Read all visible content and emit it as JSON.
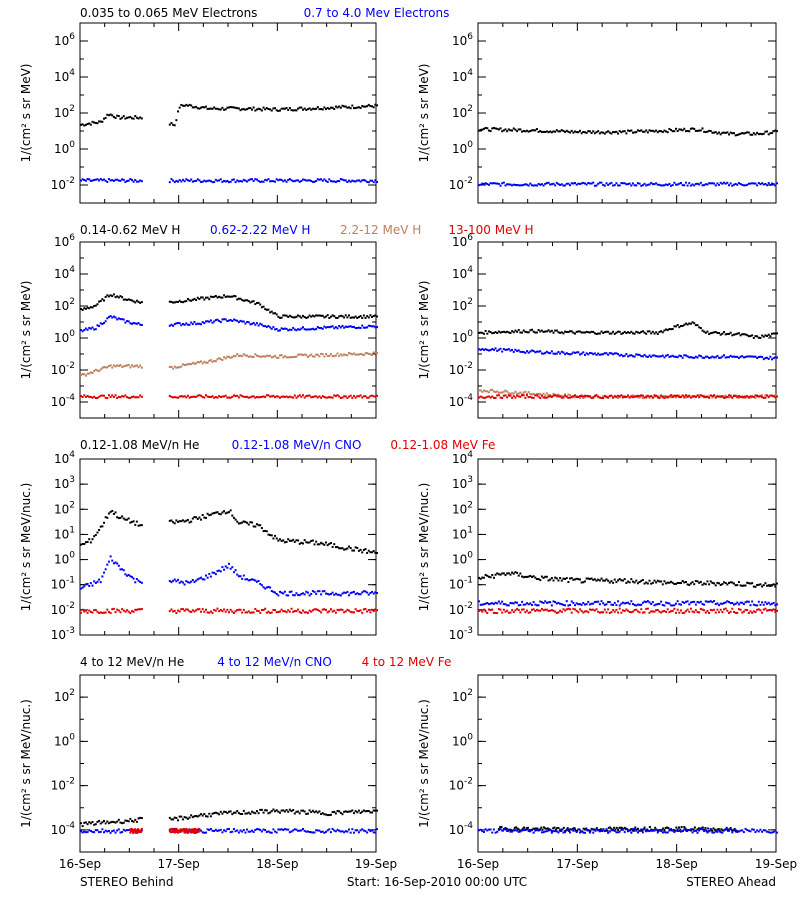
{
  "footer": {
    "left": "STEREO Behind",
    "center": "Start: 16-Sep-2010 00:00 UTC",
    "right": "STEREO Ahead"
  },
  "rows": [
    {
      "legend": [
        {
          "text": "0.035 to 0.065 MeV Electrons",
          "color": "#000000"
        },
        {
          "text": "0.7 to 4.0 Mev Electrons",
          "color": "#0000ff"
        }
      ],
      "ylabel": "1/(cm² s sr MeV)",
      "yticks": [
        {
          "base": "10",
          "exp": "-2",
          "value": -2
        },
        {
          "base": "10",
          "exp": "0",
          "value": 0
        },
        {
          "base": "10",
          "exp": "2",
          "value": 2
        },
        {
          "base": "10",
          "exp": "4",
          "value": 4
        },
        {
          "base": "10",
          "exp": "6",
          "value": 6
        }
      ]
    },
    {
      "legend": [
        {
          "text": "0.14-0.62 MeV H",
          "color": "#000000"
        },
        {
          "text": "0.62-2.22 MeV H",
          "color": "#0000ff"
        },
        {
          "text": "2.2-12 MeV H",
          "color": "#c08060"
        },
        {
          "text": "13-100 MeV H",
          "color": "#e00000"
        }
      ],
      "ylabel": "1/(cm² s sr MeV)",
      "yticks": [
        {
          "base": "10",
          "exp": "-4",
          "value": -4
        },
        {
          "base": "10",
          "exp": "-2",
          "value": -2
        },
        {
          "base": "10",
          "exp": "0",
          "value": 0
        },
        {
          "base": "10",
          "exp": "2",
          "value": 2
        },
        {
          "base": "10",
          "exp": "4",
          "value": 4
        },
        {
          "base": "10",
          "exp": "6",
          "value": 6
        }
      ]
    },
    {
      "legend": [
        {
          "text": "0.12-1.08 MeV/n He",
          "color": "#000000"
        },
        {
          "text": "0.12-1.08 MeV/n CNO",
          "color": "#0000ff"
        },
        {
          "text": "0.12-1.08 MeV Fe",
          "color": "#e00000"
        }
      ],
      "ylabel": "1/(cm² s sr MeV/nuc.)",
      "yticks": [
        {
          "base": "10",
          "exp": "-3",
          "value": -3
        },
        {
          "base": "10",
          "exp": "-2",
          "value": -2
        },
        {
          "base": "10",
          "exp": "-1",
          "value": -1
        },
        {
          "base": "10",
          "exp": "0",
          "value": 0
        },
        {
          "base": "10",
          "exp": "1",
          "value": 1
        },
        {
          "base": "10",
          "exp": "2",
          "value": 2
        },
        {
          "base": "10",
          "exp": "3",
          "value": 3
        },
        {
          "base": "10",
          "exp": "4",
          "value": 4
        }
      ]
    },
    {
      "legend": [
        {
          "text": "4 to 12 MeV/n He",
          "color": "#000000"
        },
        {
          "text": "4 to 12 MeV/n CNO",
          "color": "#0000ff"
        },
        {
          "text": "4 to 12 MeV Fe",
          "color": "#e00000"
        }
      ],
      "ylabel": "1/(cm² s sr MeV/nuc.)",
      "yticks": [
        {
          "base": "10",
          "exp": "-4",
          "value": -4
        },
        {
          "base": "10",
          "exp": "-2",
          "value": -2
        },
        {
          "base": "10",
          "exp": "0",
          "value": 0
        },
        {
          "base": "10",
          "exp": "2",
          "value": 2
        }
      ]
    }
  ],
  "xticks": [
    "16-Sep",
    "17-Sep",
    "18-Sep",
    "19-Sep"
  ],
  "chart_data": [
    {
      "type": "scatter",
      "panel": "electrons-behind",
      "yscale": "log",
      "ylim_exp": [
        -3,
        7
      ],
      "x_days_range": [
        0,
        3
      ],
      "series": [
        {
          "color": "#000000",
          "points": [
            [
              0.0,
              1.4
            ],
            [
              0.12,
              1.5
            ],
            [
              0.2,
              1.55
            ],
            [
              0.28,
              2.0
            ],
            [
              0.38,
              1.8
            ],
            [
              0.6,
              1.8
            ],
            [
              0.88,
              1.5
            ],
            [
              0.95,
              1.4
            ],
            [
              1.0,
              2.4
            ],
            [
              1.05,
              2.5
            ],
            [
              1.3,
              2.3
            ],
            [
              1.6,
              2.3
            ],
            [
              2.0,
              2.25
            ],
            [
              2.5,
              2.35
            ],
            [
              3.0,
              2.45
            ]
          ]
        },
        {
          "color": "#0000ff",
          "points": [
            [
              0.0,
              -1.7
            ],
            [
              0.6,
              -1.7
            ],
            [
              0.95,
              -1.7
            ],
            [
              1.5,
              -1.7
            ],
            [
              2.0,
              -1.7
            ],
            [
              3.0,
              -1.7
            ]
          ]
        }
      ],
      "gaps": [
        [
          0.62,
          0.9
        ]
      ]
    },
    {
      "type": "scatter",
      "panel": "electrons-ahead",
      "yscale": "log",
      "ylim_exp": [
        -3,
        7
      ],
      "x_days_range": [
        0,
        3
      ],
      "series": [
        {
          "color": "#000000",
          "points": [
            [
              0.0,
              1.15
            ],
            [
              0.5,
              1.1
            ],
            [
              1.0,
              1.0
            ],
            [
              1.5,
              1.0
            ],
            [
              2.0,
              1.1
            ],
            [
              2.2,
              1.15
            ],
            [
              2.5,
              0.9
            ],
            [
              2.8,
              0.9
            ],
            [
              3.0,
              1.0
            ]
          ]
        },
        {
          "color": "#0000ff",
          "points": [
            [
              0.0,
              -1.9
            ],
            [
              1.0,
              -1.9
            ],
            [
              2.0,
              -1.9
            ],
            [
              3.0,
              -1.9
            ]
          ]
        }
      ]
    },
    {
      "type": "scatter",
      "panel": "protons-behind",
      "yscale": "log",
      "ylim_exp": [
        -5,
        6
      ],
      "x_days_range": [
        0,
        3
      ],
      "series": [
        {
          "color": "#000000",
          "points": [
            [
              0.0,
              1.8
            ],
            [
              0.15,
              2.1
            ],
            [
              0.3,
              2.8
            ],
            [
              0.45,
              2.5
            ],
            [
              0.6,
              2.3
            ],
            [
              0.9,
              2.3
            ],
            [
              1.2,
              2.5
            ],
            [
              1.5,
              2.7
            ],
            [
              1.8,
              2.2
            ],
            [
              2.0,
              1.4
            ],
            [
              2.5,
              1.4
            ],
            [
              3.0,
              1.4
            ]
          ]
        },
        {
          "color": "#0000ff",
          "points": [
            [
              0.0,
              0.5
            ],
            [
              0.15,
              0.7
            ],
            [
              0.3,
              1.4
            ],
            [
              0.45,
              1.1
            ],
            [
              0.6,
              0.9
            ],
            [
              0.9,
              0.9
            ],
            [
              1.2,
              1.0
            ],
            [
              1.5,
              1.2
            ],
            [
              1.8,
              0.9
            ],
            [
              2.0,
              0.6
            ],
            [
              2.5,
              0.7
            ],
            [
              3.0,
              0.8
            ]
          ]
        },
        {
          "color": "#c08060",
          "points": [
            [
              0.0,
              -2.3
            ],
            [
              0.3,
              -1.7
            ],
            [
              0.6,
              -1.7
            ],
            [
              0.9,
              -1.8
            ],
            [
              1.3,
              -1.4
            ],
            [
              1.6,
              -1.0
            ],
            [
              2.0,
              -1.1
            ],
            [
              2.5,
              -1.0
            ],
            [
              3.0,
              -0.9
            ]
          ]
        },
        {
          "color": "#e00000",
          "points": [
            [
              0.0,
              -3.6
            ],
            [
              0.6,
              -3.6
            ],
            [
              0.9,
              -3.6
            ],
            [
              1.5,
              -3.6
            ],
            [
              2.0,
              -3.6
            ],
            [
              3.0,
              -3.6
            ]
          ]
        }
      ],
      "gaps": [
        [
          0.62,
          0.9
        ]
      ]
    },
    {
      "type": "scatter",
      "panel": "protons-ahead",
      "yscale": "log",
      "ylim_exp": [
        -5,
        6
      ],
      "x_days_range": [
        0,
        3
      ],
      "series": [
        {
          "color": "#000000",
          "points": [
            [
              0.0,
              0.4
            ],
            [
              0.5,
              0.5
            ],
            [
              1.0,
              0.4
            ],
            [
              1.5,
              0.4
            ],
            [
              1.8,
              0.4
            ],
            [
              2.0,
              0.8
            ],
            [
              2.15,
              1.0
            ],
            [
              2.3,
              0.4
            ],
            [
              2.6,
              0.3
            ],
            [
              2.8,
              0.1
            ],
            [
              3.0,
              0.3
            ]
          ]
        },
        {
          "color": "#0000ff",
          "points": [
            [
              0.0,
              -0.6
            ],
            [
              0.5,
              -0.8
            ],
            [
              1.0,
              -0.9
            ],
            [
              1.5,
              -1.0
            ],
            [
              2.0,
              -1.1
            ],
            [
              2.5,
              -1.1
            ],
            [
              3.0,
              -1.2
            ]
          ]
        },
        {
          "color": "#c08060",
          "points": [
            [
              0.0,
              -3.2
            ],
            [
              1.0,
              -3.6
            ],
            [
              2.0,
              -3.6
            ],
            [
              3.0,
              -3.6
            ]
          ]
        },
        {
          "color": "#e00000",
          "points": [
            [
              0.0,
              -3.6
            ],
            [
              1.0,
              -3.6
            ],
            [
              2.0,
              -3.6
            ],
            [
              3.0,
              -3.6
            ]
          ]
        }
      ]
    },
    {
      "type": "scatter",
      "panel": "ions-low-behind",
      "yscale": "log",
      "ylim_exp": [
        -3,
        4
      ],
      "x_days_range": [
        0,
        3
      ],
      "series": [
        {
          "color": "#000000",
          "points": [
            [
              0.0,
              0.6
            ],
            [
              0.1,
              0.8
            ],
            [
              0.2,
              1.3
            ],
            [
              0.3,
              2.0
            ],
            [
              0.4,
              1.7
            ],
            [
              0.55,
              1.5
            ],
            [
              0.6,
              1.4
            ],
            [
              0.9,
              1.5
            ],
            [
              1.1,
              1.6
            ],
            [
              1.3,
              1.8
            ],
            [
              1.5,
              2.0
            ],
            [
              1.6,
              1.5
            ],
            [
              1.8,
              1.4
            ],
            [
              2.0,
              0.8
            ],
            [
              2.4,
              0.7
            ],
            [
              2.7,
              0.5
            ],
            [
              3.0,
              0.3
            ]
          ]
        },
        {
          "color": "#0000ff",
          "points": [
            [
              0.0,
              -1.1
            ],
            [
              0.2,
              -0.8
            ],
            [
              0.3,
              0.1
            ],
            [
              0.4,
              -0.3
            ],
            [
              0.55,
              -0.8
            ],
            [
              0.9,
              -0.8
            ],
            [
              1.1,
              -0.9
            ],
            [
              1.3,
              -0.6
            ],
            [
              1.5,
              -0.2
            ],
            [
              1.6,
              -0.6
            ],
            [
              1.8,
              -0.9
            ],
            [
              2.0,
              -1.3
            ],
            [
              2.5,
              -1.3
            ],
            [
              3.0,
              -1.3
            ]
          ]
        },
        {
          "color": "#e00000",
          "points": [
            [
              0.0,
              -2.0
            ],
            [
              0.6,
              -2.0
            ],
            [
              0.9,
              -2.0
            ],
            [
              1.5,
              -2.0
            ],
            [
              2.0,
              -2.0
            ],
            [
              3.0,
              -2.0
            ]
          ]
        }
      ],
      "gaps": [
        [
          0.62,
          0.9
        ]
      ]
    },
    {
      "type": "scatter",
      "panel": "ions-low-ahead",
      "yscale": "log",
      "ylim_exp": [
        -3,
        4
      ],
      "x_days_range": [
        0,
        3
      ],
      "series": [
        {
          "color": "#000000",
          "points": [
            [
              0.0,
              -0.7
            ],
            [
              0.3,
              -0.5
            ],
            [
              0.6,
              -0.7
            ],
            [
              1.0,
              -0.8
            ],
            [
              1.5,
              -0.8
            ],
            [
              2.0,
              -0.9
            ],
            [
              2.5,
              -0.9
            ],
            [
              3.0,
              -1.0
            ]
          ]
        },
        {
          "color": "#0000ff",
          "points": [
            [
              0.0,
              -1.7
            ],
            [
              1.0,
              -1.7
            ],
            [
              2.0,
              -1.7
            ],
            [
              3.0,
              -1.7
            ]
          ]
        },
        {
          "color": "#e00000",
          "points": [
            [
              0.0,
              -2.0
            ],
            [
              1.0,
              -2.0
            ],
            [
              2.0,
              -2.0
            ],
            [
              3.0,
              -2.0
            ]
          ]
        }
      ]
    },
    {
      "type": "scatter",
      "panel": "ions-high-behind",
      "yscale": "log",
      "ylim_exp": [
        -5,
        3
      ],
      "x_days_range": [
        0,
        3
      ],
      "series": [
        {
          "color": "#000000",
          "points": [
            [
              0.0,
              -3.7
            ],
            [
              0.3,
              -3.6
            ],
            [
              0.6,
              -3.5
            ],
            [
              0.9,
              -3.5
            ],
            [
              1.2,
              -3.3
            ],
            [
              1.5,
              -3.2
            ],
            [
              2.0,
              -3.1
            ],
            [
              2.5,
              -3.2
            ],
            [
              3.0,
              -3.1
            ]
          ]
        },
        {
          "color": "#0000ff",
          "points": [
            [
              0.0,
              -4.0
            ],
            [
              0.6,
              -4.0
            ],
            [
              0.9,
              -4.0
            ],
            [
              1.5,
              -4.0
            ],
            [
              2.0,
              -4.0
            ],
            [
              3.0,
              -4.0
            ]
          ]
        },
        {
          "color": "#e00000",
          "points": [
            [
              0.5,
              -4.0
            ],
            [
              1.2,
              -4.0
            ]
          ]
        }
      ],
      "gaps": [
        [
          0.62,
          0.9
        ]
      ]
    },
    {
      "type": "scatter",
      "panel": "ions-high-ahead",
      "yscale": "log",
      "ylim_exp": [
        -5,
        3
      ],
      "x_days_range": [
        0,
        3
      ],
      "series": [
        {
          "color": "#000000",
          "points": [
            [
              0.2,
              -3.9
            ],
            [
              1.0,
              -3.95
            ],
            [
              1.8,
              -3.9
            ],
            [
              2.6,
              -3.95
            ]
          ]
        },
        {
          "color": "#0000ff",
          "points": [
            [
              0.0,
              -4.0
            ],
            [
              1.0,
              -4.0
            ],
            [
              2.0,
              -4.0
            ],
            [
              3.0,
              -4.0
            ]
          ]
        }
      ]
    }
  ]
}
